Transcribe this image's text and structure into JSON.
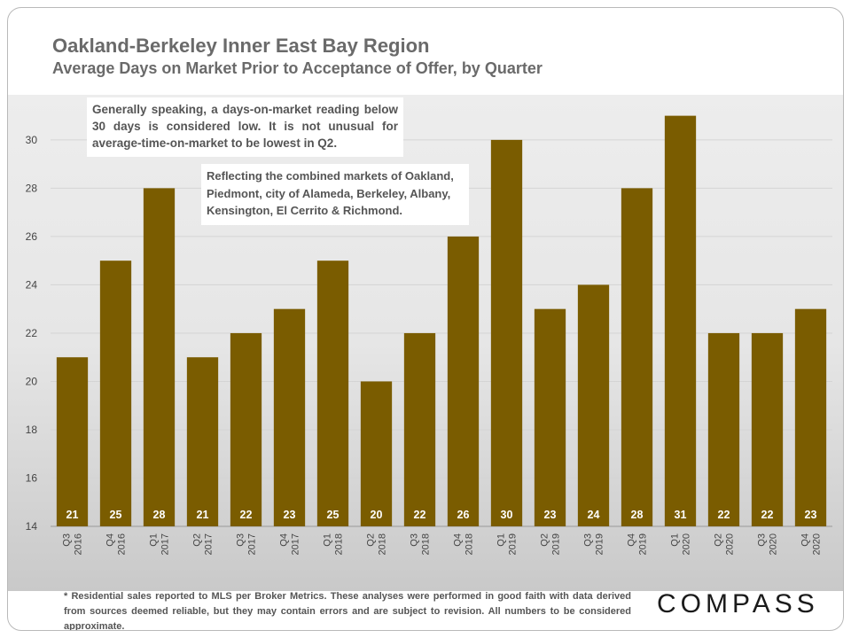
{
  "header": {
    "title": "Oakland-Berkeley Inner East Bay Region",
    "subtitle": "Average Days on Market Prior to Acceptance of Offer, by Quarter"
  },
  "annotations": {
    "note1": "Generally speaking, a days-on-market reading below 30 days is considered low. It is not unusual for average-time-on-market to be lowest in Q2.",
    "note2": "Reflecting the combined markets of Oakland, Piedmont, city of Alameda, Berkeley, Albany, Kensington, El Cerrito & Richmond."
  },
  "footer": {
    "footnote": "* Residential sales reported to MLS per Broker Metrics. These analyses were performed in good faith with data derived from sources deemed reliable, but they may contain errors and are subject to revision. All numbers to be considered approximate.",
    "logo": "COMPASS"
  },
  "colors": {
    "bar": "#7a5c00",
    "grid": "#d4d4d4",
    "axis_text": "#444444",
    "label": "#ffffff"
  },
  "chart_data": {
    "type": "bar",
    "title": "Oakland-Berkeley Inner East Bay Region",
    "subtitle": "Average Days on Market Prior to Acceptance of Offer, by Quarter",
    "categories": [
      [
        "Q3",
        "2016"
      ],
      [
        "Q4",
        "2016"
      ],
      [
        "Q1",
        "2017"
      ],
      [
        "Q2",
        "2017"
      ],
      [
        "Q3",
        "2017"
      ],
      [
        "Q4",
        "2017"
      ],
      [
        "Q1",
        "2018"
      ],
      [
        "Q2",
        "2018"
      ],
      [
        "Q3",
        "2018"
      ],
      [
        "Q4",
        "2018"
      ],
      [
        "Q1",
        "2019"
      ],
      [
        "Q2",
        "2019"
      ],
      [
        "Q3",
        "2019"
      ],
      [
        "Q4",
        "2019"
      ],
      [
        "Q1",
        "2020"
      ],
      [
        "Q2",
        "2020"
      ],
      [
        "Q3",
        "2020"
      ],
      [
        "Q4",
        "2020"
      ]
    ],
    "values": [
      21,
      25,
      28,
      21,
      22,
      23,
      25,
      20,
      22,
      26,
      30,
      23,
      24,
      28,
      31,
      22,
      22,
      23
    ],
    "ylim": [
      14,
      31.5
    ],
    "yticks": [
      14,
      16,
      18,
      20,
      22,
      24,
      26,
      28,
      30
    ],
    "grid": true,
    "data_labels": true,
    "legend": "none"
  }
}
